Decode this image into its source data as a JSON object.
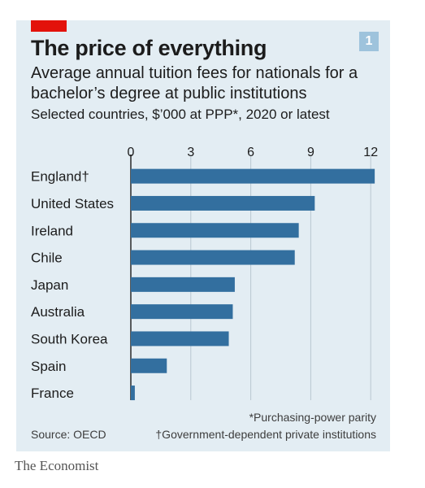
{
  "badge": "1",
  "title": "The price of everything",
  "subtitle": "Average annual tuition fees for nationals for a bachelor’s degree at public institutions",
  "description": "Selected countries, $’000 at PPP*, 2020 or latest",
  "footnotes": {
    "ppp": "*Purchasing-power parity",
    "government": "†Government-dependent private institutions",
    "source": "Source: OECD"
  },
  "brand": "The Economist",
  "colors": {
    "bar": "#336f9f",
    "accent": "#e3120b",
    "background": "#e3edf3",
    "grid": "#b9c7d1"
  },
  "chart_data": {
    "type": "bar",
    "orientation": "horizontal",
    "categories": [
      "England†",
      "United States",
      "Ireland",
      "Chile",
      "Japan",
      "Australia",
      "South Korea",
      "Spain",
      "France"
    ],
    "values": [
      12.2,
      9.2,
      8.4,
      8.2,
      5.2,
      5.1,
      4.9,
      1.8,
      0.2
    ],
    "ticks": [
      0,
      3,
      6,
      9,
      12
    ],
    "tick_labels": [
      "0",
      "3",
      "6",
      "9",
      "12"
    ],
    "xlim": [
      0,
      12.3
    ],
    "grid": true,
    "axis_position": "top"
  }
}
